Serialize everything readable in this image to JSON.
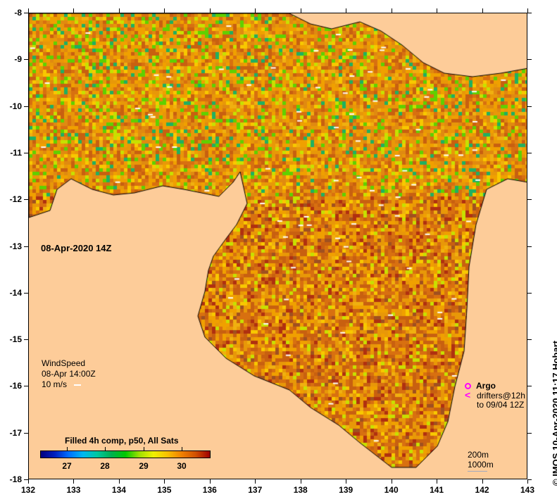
{
  "map": {
    "timestamp_label": "08-Apr-2020 14Z",
    "x_ticks": [
      "132",
      "133",
      "134",
      "135",
      "136",
      "137",
      "138",
      "139",
      "140",
      "141",
      "142",
      "143"
    ],
    "y_ticks": [
      "-8",
      "-9",
      "-10",
      "-11",
      "-12",
      "-13",
      "-14",
      "-15",
      "-16",
      "-17",
      "-18"
    ],
    "lon_range": [
      132,
      143
    ],
    "lat_range": [
      -8,
      -18
    ]
  },
  "wind": {
    "title": "WindSpeed",
    "time": "08-Apr 14:00Z",
    "scale": "10 m/s"
  },
  "colorbar": {
    "title": "Filled 4h comp, p50, All Sats",
    "range": [
      26.3,
      30.7
    ],
    "ticks": [
      "27",
      "28",
      "29",
      "30"
    ],
    "colors": [
      "#00007f",
      "#0070ff",
      "#00c8a0",
      "#00c800",
      "#f0f000",
      "#f08000",
      "#a00000"
    ]
  },
  "argo_legend": {
    "argo": "Argo",
    "drifters": "drifters@12h",
    "drifters_to": "to 09/04 12Z",
    "argo_color": "#ff00ff"
  },
  "bathymetry_legend": {
    "contour_200": "200m",
    "contour_1000": "1000m"
  },
  "credit": "© IMOS 10-Apr-2020 11:17 Hobart",
  "colors": {
    "land": "#fdcc99"
  }
}
